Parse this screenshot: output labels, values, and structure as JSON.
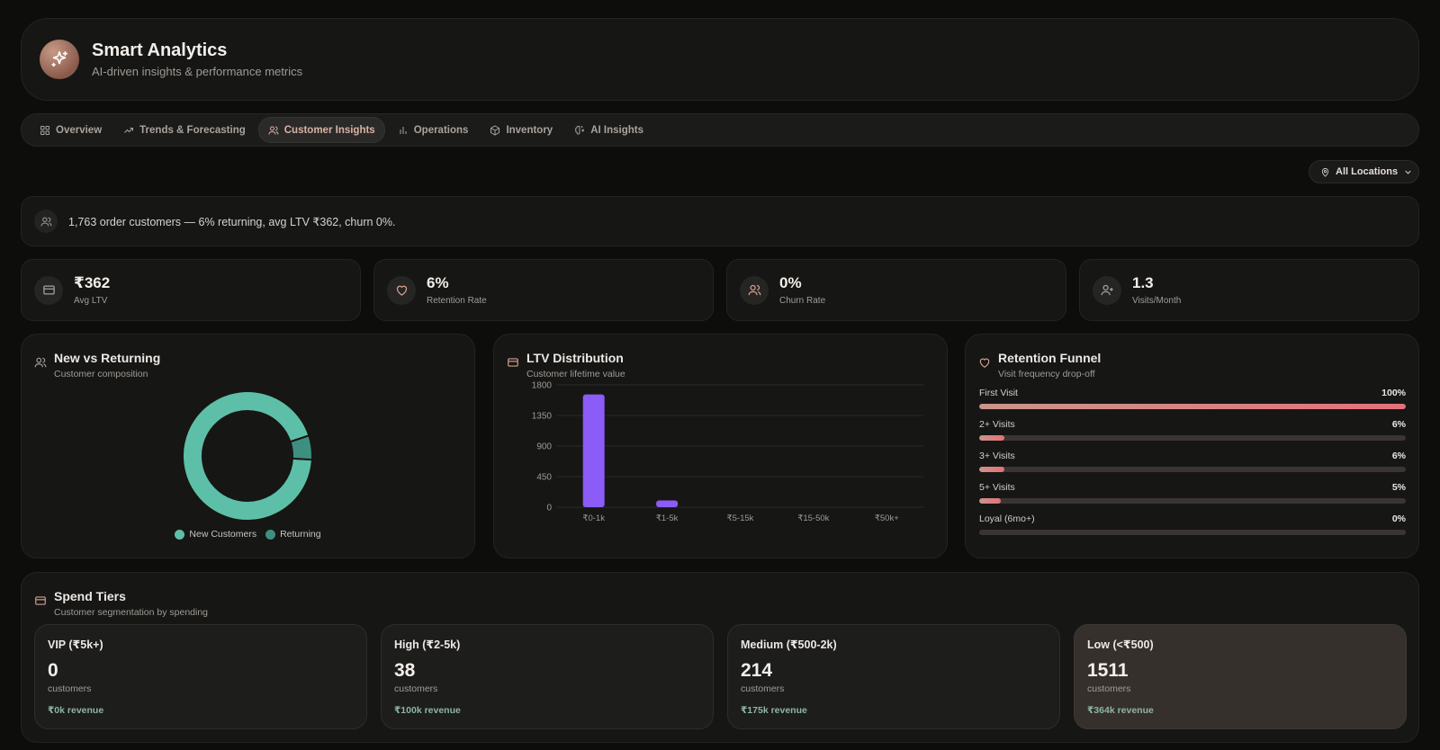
{
  "header": {
    "title": "Smart Analytics",
    "subtitle": "AI-driven insights & performance metrics"
  },
  "tabs": [
    {
      "label": "Overview",
      "icon": "grid-icon"
    },
    {
      "label": "Trends & Forecasting",
      "icon": "trend-up-icon"
    },
    {
      "label": "Customer Insights",
      "icon": "users-icon",
      "active": true
    },
    {
      "label": "Operations",
      "icon": "bar-chart-icon"
    },
    {
      "label": "Inventory",
      "icon": "box-icon"
    },
    {
      "label": "AI Insights",
      "icon": "brain-icon"
    }
  ],
  "location": {
    "label": "All Locations"
  },
  "summary": {
    "text": "1,763 order customers — 6% returning, avg LTV ₹362, churn 0%."
  },
  "kpis": [
    {
      "value": "₹362",
      "label": "Avg LTV",
      "icon": "card-icon"
    },
    {
      "value": "6%",
      "label": "Retention Rate",
      "icon": "heart-icon"
    },
    {
      "value": "0%",
      "label": "Churn Rate",
      "icon": "users-icon"
    },
    {
      "value": "1.3",
      "label": "Visits/Month",
      "icon": "user-plus-icon"
    }
  ],
  "new_vs_returning": {
    "title": "New vs Returning",
    "subtitle": "Customer composition",
    "legend": [
      "New Customers",
      "Returning"
    ],
    "colors": [
      "#5dbfa7",
      "#3e8f7f"
    ],
    "chart_data": {
      "type": "pie",
      "labels": [
        "New Customers",
        "Returning"
      ],
      "values": [
        94,
        6
      ]
    }
  },
  "ltv": {
    "title": "LTV Distribution",
    "subtitle": "Customer lifetime value",
    "color": "#8b5cf6",
    "chart_data": {
      "type": "bar",
      "categories": [
        "₹0-1k",
        "₹1-5k",
        "₹5-15k",
        "₹15-50k",
        "₹50k+"
      ],
      "values": [
        1660,
        100,
        0,
        0,
        0
      ],
      "ylim": [
        0,
        1800
      ],
      "yticks": [
        0,
        450,
        900,
        1350,
        1800
      ]
    }
  },
  "funnel": {
    "title": "Retention Funnel",
    "subtitle": "Visit frequency drop-off",
    "rows": [
      {
        "label": "First Visit",
        "value": "100%",
        "pct": 100
      },
      {
        "label": "2+ Visits",
        "value": "6%",
        "pct": 6
      },
      {
        "label": "3+ Visits",
        "value": "6%",
        "pct": 6
      },
      {
        "label": "5+ Visits",
        "value": "5%",
        "pct": 5
      },
      {
        "label": "Loyal (6mo+)",
        "value": "0%",
        "pct": 0
      }
    ]
  },
  "tiers": {
    "title": "Spend Tiers",
    "subtitle": "Customer segmentation by spending",
    "items": [
      {
        "name": "VIP (₹5k+)",
        "count": "0",
        "unit": "customers",
        "revenue": "₹0k revenue"
      },
      {
        "name": "High (₹2-5k)",
        "count": "38",
        "unit": "customers",
        "revenue": "₹100k revenue"
      },
      {
        "name": "Medium (₹500-2k)",
        "count": "214",
        "unit": "customers",
        "revenue": "₹175k revenue"
      },
      {
        "name": "Low (<₹500)",
        "count": "1511",
        "unit": "customers",
        "revenue": "₹364k revenue"
      }
    ]
  }
}
